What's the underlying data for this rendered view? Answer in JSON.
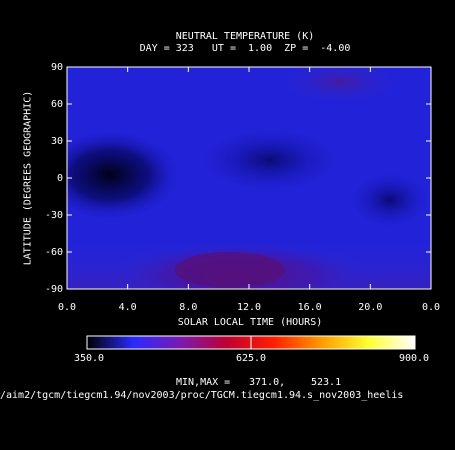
{
  "chart_data": {
    "type": "heatmap",
    "title": "NEUTRAL TEMPERATURE (K)",
    "subtitle": "DAY = 323   UT =  1.00  ZP =  -4.00",
    "xlabel": "SOLAR LOCAL TIME (HOURS)",
    "ylabel": "LATITUDE (DEGREES GEOGRAPHIC)",
    "xlim": [
      0,
      24
    ],
    "ylim": [
      -90,
      90
    ],
    "x_ticks": [
      "0.0",
      "4.0",
      "8.0",
      "12.0",
      "16.0",
      "20.0",
      "0.0"
    ],
    "y_ticks": [
      "90",
      "60",
      "30",
      "0",
      "-30",
      "-60",
      "-90"
    ],
    "x_tick_values": [
      0,
      4,
      8,
      12,
      16,
      20,
      24
    ],
    "y_tick_values": [
      90,
      60,
      30,
      0,
      -30,
      -60,
      -90
    ],
    "colorbar": {
      "min": 350.0,
      "max": 900.0,
      "labels": [
        "350.0",
        "625.0",
        "900.0"
      ],
      "colors": [
        "#000000",
        "#2a2aff",
        "#7a1ab0",
        "#c00030",
        "#ff2000",
        "#ff9a00",
        "#ffff30",
        "#ffffff"
      ]
    },
    "minmax_label": "MIN,MAX =",
    "min_value": "371.0,",
    "max_value": "523.1",
    "footer_path": "/aim2/tgcm/tiegcm1.94/nov2003/proc/TGCM.tiegcm1.94.s_nov2003_heelis",
    "grid": false
  }
}
